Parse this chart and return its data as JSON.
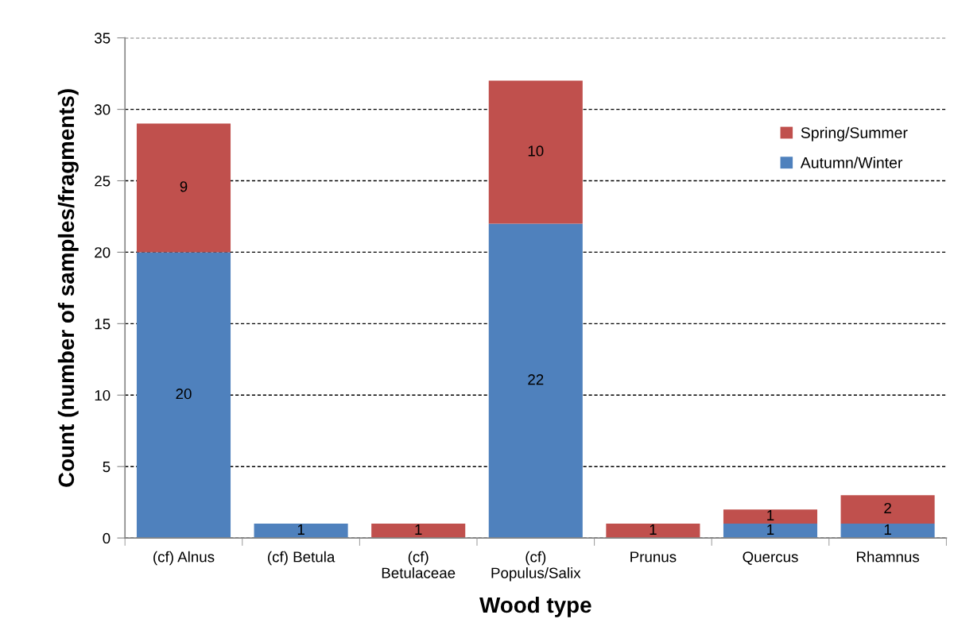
{
  "chart_data": {
    "type": "bar",
    "stacked": true,
    "xlabel": "Wood type",
    "ylabel": "Count (number of samples/fragments)",
    "categories": [
      "(cf) Alnus",
      "(cf) Betula",
      "(cf)\nBetulaceae",
      "(cf)\nPopulus/Salix",
      "Prunus",
      "Quercus",
      "Rhamnus"
    ],
    "series": [
      {
        "name": "Autumn/Winter",
        "color": "#4f81bd",
        "values": [
          20,
          1,
          0,
          22,
          0,
          1,
          1
        ],
        "value_labels": [
          "20",
          "1",
          null,
          "22",
          null,
          "1",
          "1"
        ]
      },
      {
        "name": "Spring/Summer",
        "color": "#c0504d",
        "values": [
          9,
          0,
          1,
          10,
          1,
          1,
          2
        ],
        "value_labels": [
          "9",
          null,
          "1",
          "10",
          "1",
          "1",
          "2"
        ]
      }
    ],
    "ylim": [
      0,
      35
    ],
    "yticks": [
      0,
      5,
      10,
      15,
      20,
      25,
      30,
      35
    ],
    "grid": "y",
    "legend": "top right"
  }
}
